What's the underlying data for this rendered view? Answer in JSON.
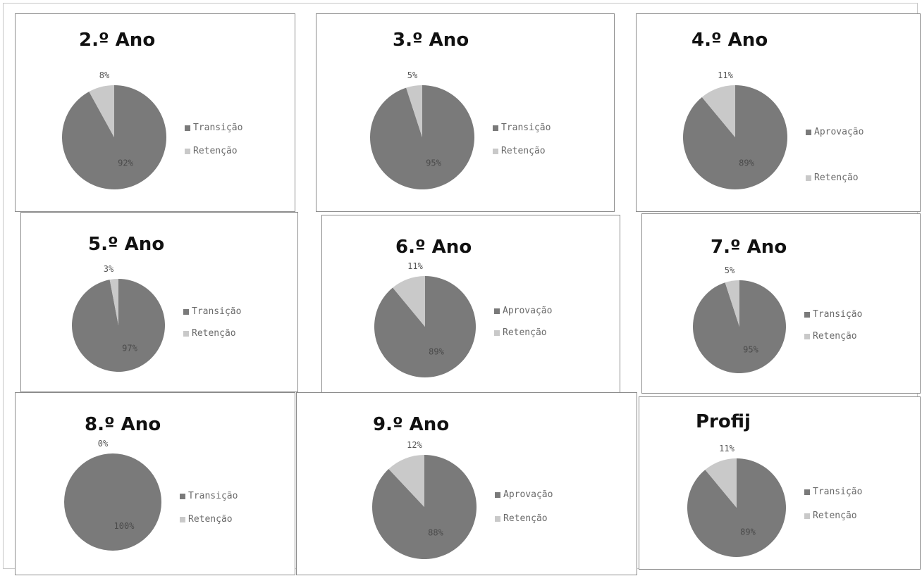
{
  "colors": {
    "major": "#7a7a7a",
    "minor": "#c9c9c9",
    "text": "#555555"
  },
  "chart_data": [
    {
      "type": "pie",
      "title": "2.º Ano",
      "slices": [
        {
          "name": "Transição",
          "value": 92,
          "label": "92%"
        },
        {
          "name": "Retenção",
          "value": 8,
          "label": "8%"
        }
      ]
    },
    {
      "type": "pie",
      "title": "3.º Ano",
      "slices": [
        {
          "name": "Transição",
          "value": 95,
          "label": "95%"
        },
        {
          "name": "Retenção",
          "value": 5,
          "label": "5%"
        }
      ]
    },
    {
      "type": "pie",
      "title": "4.º Ano",
      "slices": [
        {
          "name": "Aprovação",
          "value": 89,
          "label": "89%"
        },
        {
          "name": "Retenção",
          "value": 11,
          "label": "11%"
        }
      ]
    },
    {
      "type": "pie",
      "title": "5.º Ano",
      "slices": [
        {
          "name": "Transição",
          "value": 97,
          "label": "97%"
        },
        {
          "name": "Retenção",
          "value": 3,
          "label": "3%"
        }
      ]
    },
    {
      "type": "pie",
      "title": "6.º Ano",
      "slices": [
        {
          "name": "Aprovação",
          "value": 89,
          "label": "89%"
        },
        {
          "name": "Retenção",
          "value": 11,
          "label": "11%"
        }
      ]
    },
    {
      "type": "pie",
      "title": "7.º Ano",
      "slices": [
        {
          "name": "Transição",
          "value": 95,
          "label": "95%"
        },
        {
          "name": "Retenção",
          "value": 5,
          "label": "5%"
        }
      ]
    },
    {
      "type": "pie",
      "title": "8.º Ano",
      "slices": [
        {
          "name": "Transição",
          "value": 100,
          "label": "100%"
        },
        {
          "name": "Retenção",
          "value": 0,
          "label": "0%"
        }
      ]
    },
    {
      "type": "pie",
      "title": "9.º Ano",
      "slices": [
        {
          "name": "Aprovação",
          "value": 88,
          "label": "88%"
        },
        {
          "name": "Retenção",
          "value": 12,
          "label": "12%"
        }
      ]
    },
    {
      "type": "pie",
      "title": "Profij",
      "slices": [
        {
          "name": "Transição",
          "value": 89,
          "label": "89%"
        },
        {
          "name": "Retenção",
          "value": 11,
          "label": "11%"
        }
      ]
    }
  ]
}
